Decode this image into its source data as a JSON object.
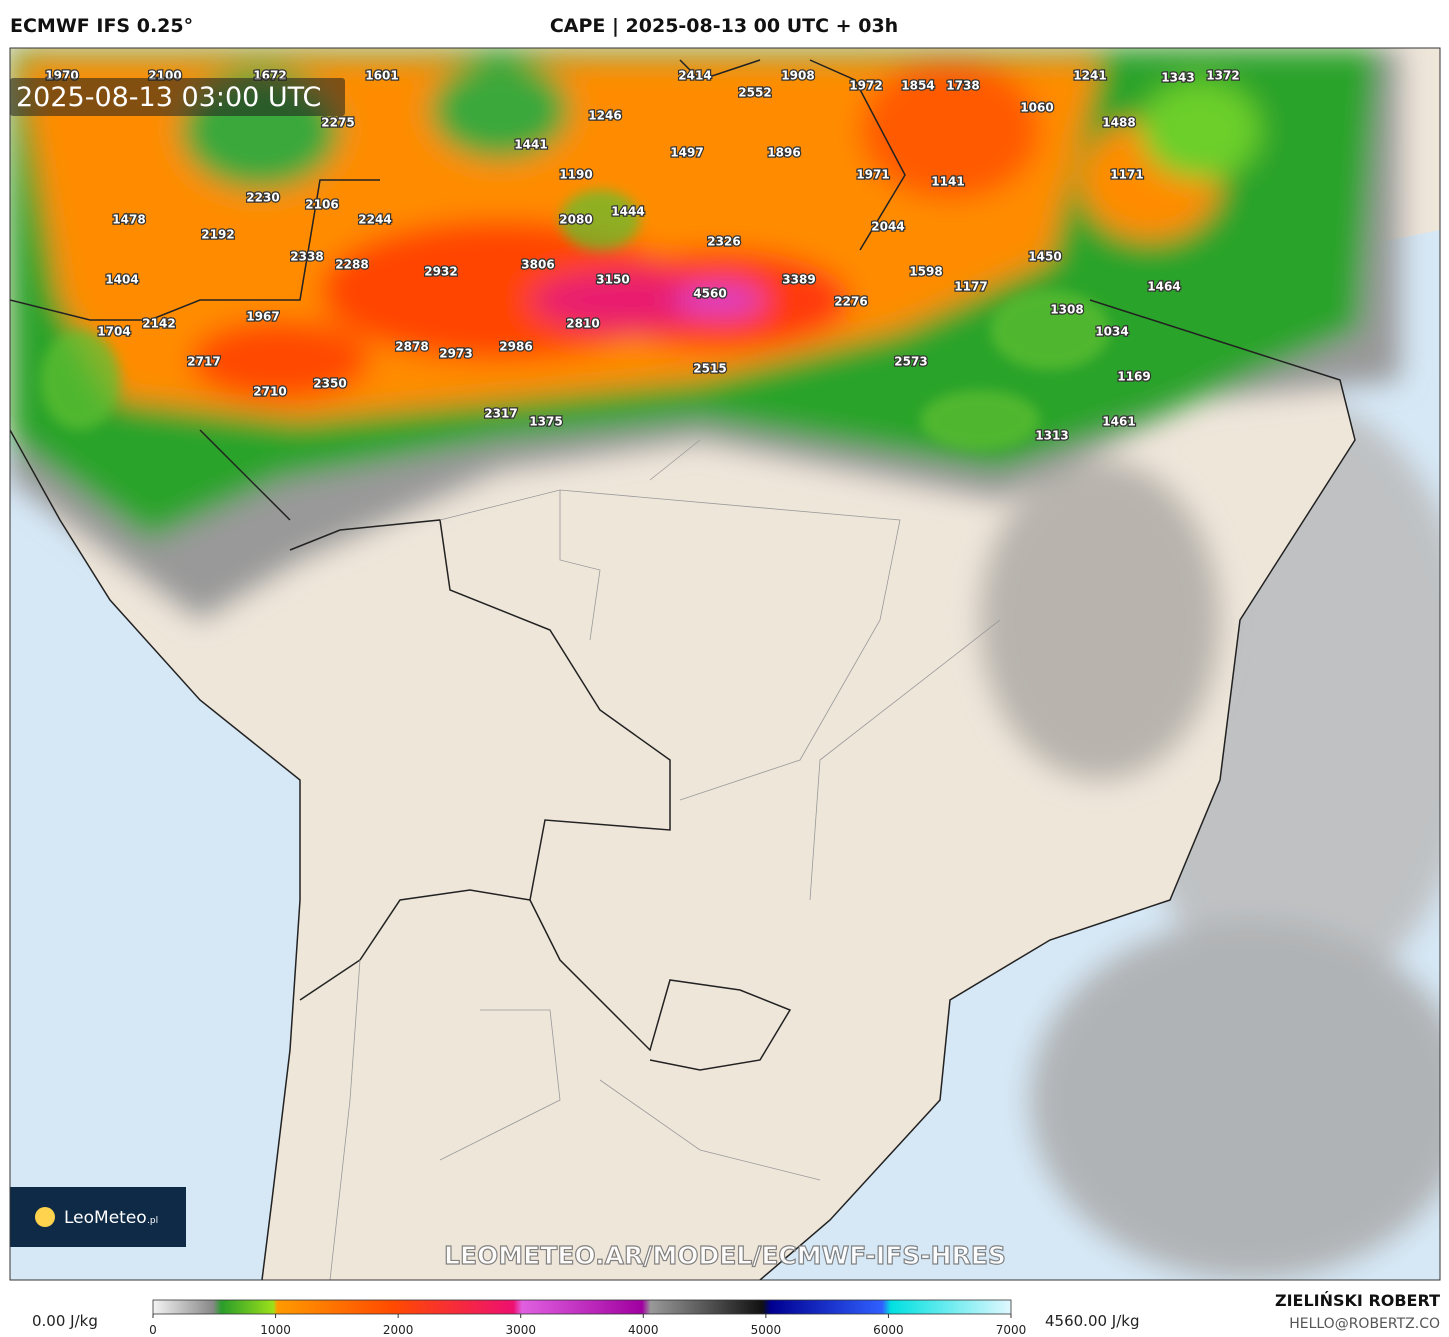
{
  "header": {
    "model": "ECMWF IFS 0.25°",
    "title": "CAPE | 2025-08-13 00 UTC + 03h"
  },
  "map": {
    "timestamp": "2025-08-13 03:00 UTC",
    "watermark": "LEOMETEO.AR/MODEL/ECMWF-IFS-HRES",
    "logo": "LeoMeteo",
    "logo_suffix": ".pl",
    "labels": [
      1970,
      2100,
      1672,
      1601,
      2414,
      1908,
      1972,
      1854,
      1738,
      1241,
      1343,
      1372,
      2552,
      1246,
      2275,
      1060,
      1488,
      1441,
      1497,
      1896,
      1190,
      1971,
      1141,
      1171,
      2230,
      2106,
      2244,
      1478,
      2080,
      1444,
      2044,
      2192,
      2326,
      2338,
      2288,
      2932,
      3806,
      3150,
      1598,
      1450,
      3389,
      1404,
      1177,
      1464,
      4560,
      2276,
      1308,
      1967,
      2142,
      2810,
      1704,
      1034,
      2878,
      2973,
      2986,
      2717,
      2573,
      2515,
      1169,
      2710,
      2350,
      2317,
      1375,
      1461,
      1313
    ]
  },
  "colorbar": {
    "min_label": "0.00 J/kg",
    "max_label": "4560.00 J/kg",
    "lim": [
      0,
      7000
    ],
    "ticks": [
      0,
      1000,
      2000,
      3000,
      4000,
      5000,
      6000,
      7000
    ]
  },
  "footer": {
    "author": "ZIELIŃSKI ROBERT",
    "email": "HELLO@ROBERTZ.CO"
  }
}
